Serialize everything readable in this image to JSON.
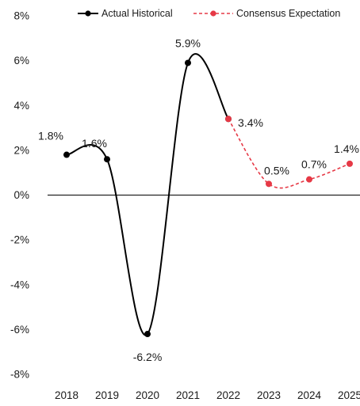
{
  "chart_data": {
    "type": "line",
    "title": "",
    "xlabel": "",
    "ylabel": "",
    "categories": [
      "2018",
      "2019",
      "2020",
      "2021",
      "2022",
      "2023",
      "2024",
      "2025"
    ],
    "y_ticks": [
      "8%",
      "6%",
      "4%",
      "2%",
      "0%",
      "-2%",
      "-4%",
      "-6%",
      "-8%"
    ],
    "ylim": [
      -8,
      8
    ],
    "grid": false,
    "legend_position": "top",
    "series": [
      {
        "name": "Actual Historical",
        "color": "#000000",
        "style": "solid",
        "x": [
          "2018",
          "2019",
          "2020",
          "2021",
          "2022"
        ],
        "values": [
          1.8,
          1.6,
          -6.2,
          5.9,
          3.4
        ],
        "labels": [
          "1.8%",
          "1.6%",
          "-6.2%",
          "5.9%",
          "3.4%"
        ]
      },
      {
        "name": "Consensus Expectation",
        "color": "#e63946",
        "style": "dashed",
        "x": [
          "2022",
          "2023",
          "2024",
          "2025"
        ],
        "values": [
          3.4,
          0.5,
          0.7,
          1.4
        ],
        "labels": [
          "",
          "0.5%",
          "0.7%",
          "1.4%"
        ]
      }
    ]
  }
}
